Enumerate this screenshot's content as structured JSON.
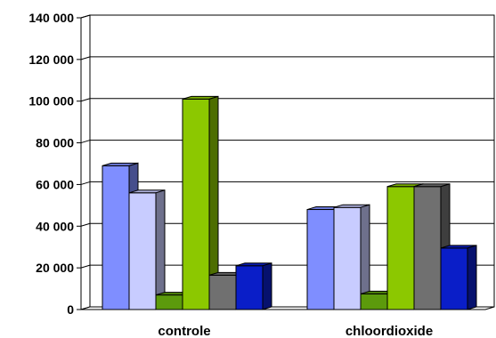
{
  "chart_data": {
    "type": "bar",
    "categories": [
      "controle",
      "chloordioxide"
    ],
    "series": [
      {
        "color": "#7f8eff",
        "values": [
          69000,
          48000
        ]
      },
      {
        "color": "#c8ccff",
        "values": [
          56000,
          49000
        ]
      },
      {
        "color": "#5c9a0c",
        "values": [
          7000,
          7500
        ]
      },
      {
        "color": "#8cc800",
        "values": [
          101000,
          59000
        ]
      },
      {
        "color": "#707070",
        "values": [
          16500,
          59000
        ]
      },
      {
        "color": "#0a1ec8",
        "values": [
          21000,
          29500
        ]
      }
    ],
    "yticks": [
      "0",
      "20 000",
      "40 000",
      "60 000",
      "80 000",
      "100 000",
      "120 000",
      "140 000"
    ],
    "ylim": [
      0,
      140000
    ],
    "grid": true
  }
}
